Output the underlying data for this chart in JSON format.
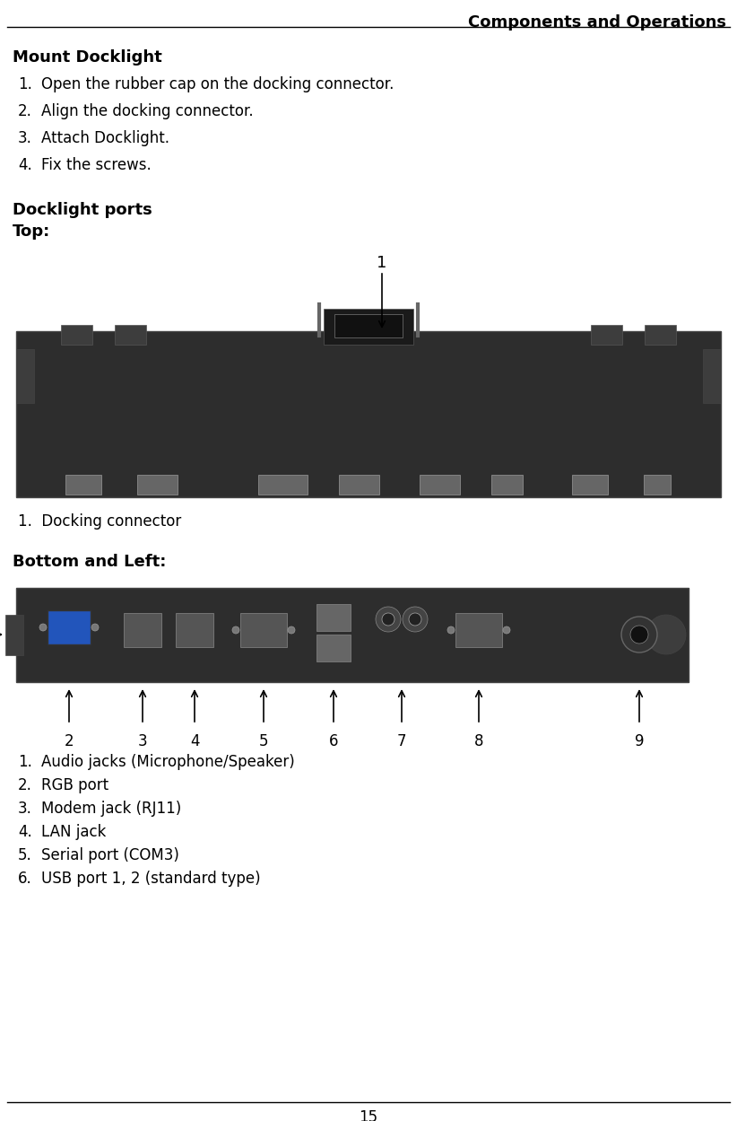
{
  "header_text": "Components and Operations",
  "page_number": "15",
  "section1_title": "Mount Docklight",
  "section1_items": [
    "Open the rubber cap on the docking connector.",
    "Align the docking connector.",
    "Attach Docklight.",
    "Fix the screws."
  ],
  "section2_title": "Docklight ports",
  "section2_sub": "Top:",
  "top_label": "1",
  "top_caption": "1.  Docking connector",
  "section3_sub": "Bottom and Left:",
  "bottom_captions": [
    "Audio jacks (Microphone/Speaker)",
    "RGB port",
    "Modem jack (RJ11)",
    "LAN jack",
    "Serial port (COM3)",
    "USB port 1, 2 (standard type)"
  ],
  "bg_color": "#ffffff",
  "text_color": "#000000",
  "line_color": "#000000",
  "device_dark": "#2d2d2d",
  "device_mid": "#3d3d3d",
  "device_light": "#555555",
  "port_metal": "#888888",
  "port_blue": "#2255bb"
}
